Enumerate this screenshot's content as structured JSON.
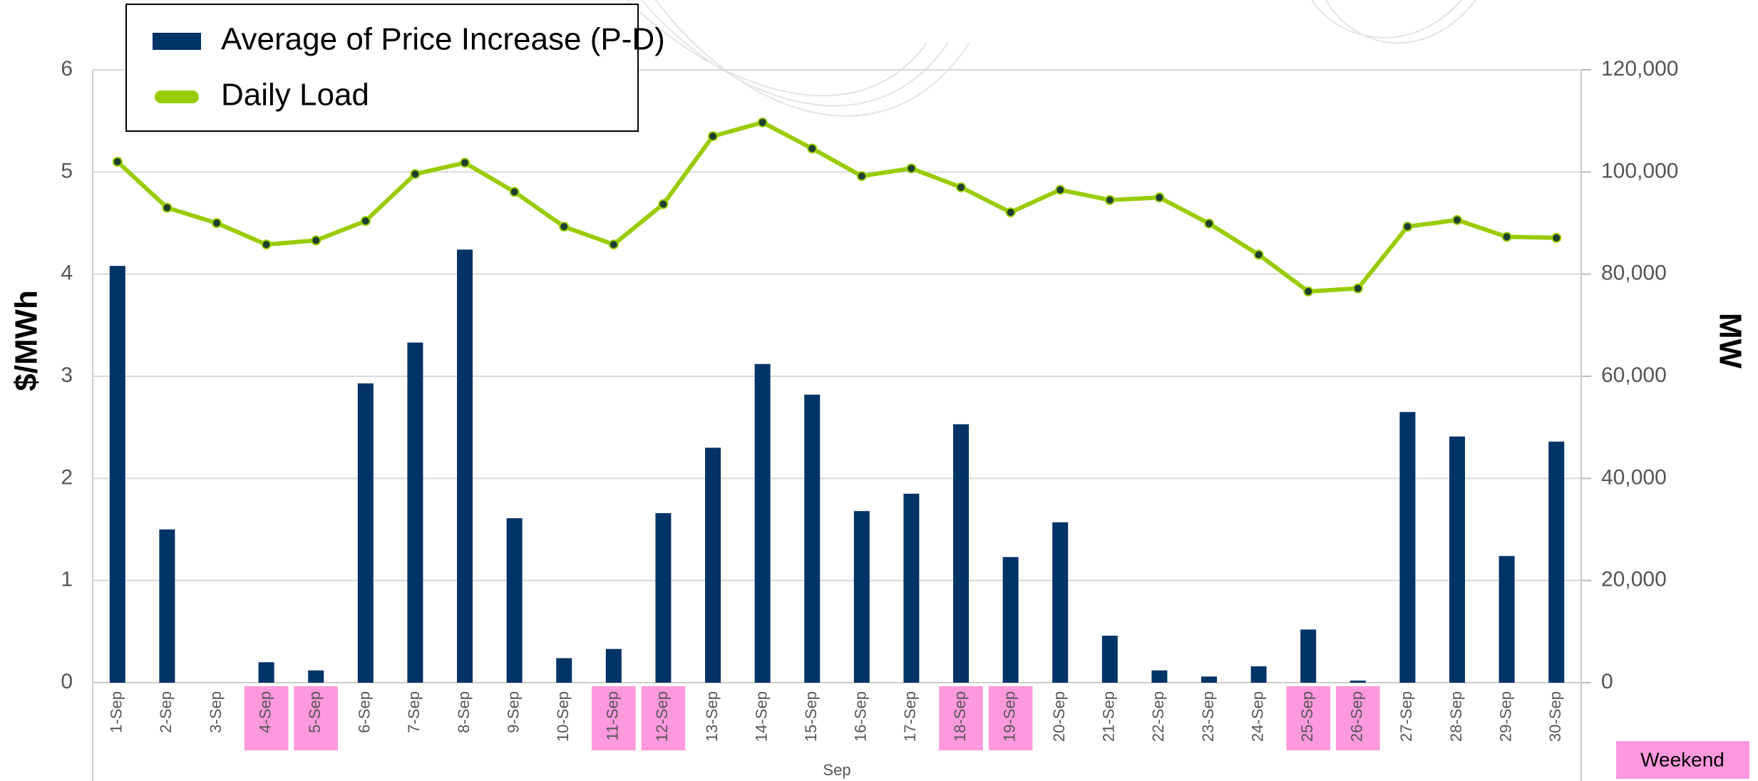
{
  "chart_data": {
    "type": "bar_line",
    "categories": [
      "1-Sep",
      "2-Sep",
      "3-Sep",
      "4-Sep",
      "5-Sep",
      "6-Sep",
      "7-Sep",
      "8-Sep",
      "9-Sep",
      "10-Sep",
      "11-Sep",
      "12-Sep",
      "13-Sep",
      "14-Sep",
      "15-Sep",
      "16-Sep",
      "17-Sep",
      "18-Sep",
      "19-Sep",
      "20-Sep",
      "21-Sep",
      "22-Sep",
      "23-Sep",
      "24-Sep",
      "25-Sep",
      "26-Sep",
      "27-Sep",
      "28-Sep",
      "29-Sep",
      "30-Sep"
    ],
    "x_label": "Sep",
    "y_label": "$/MWh",
    "y2_label": "MW",
    "ylim": [
      0,
      6
    ],
    "yticks": [
      0,
      1,
      2,
      3,
      4,
      5,
      6
    ],
    "y2lim": [
      0,
      120000
    ],
    "y2ticks": [
      0,
      {
        "value": 20000,
        "label": "20,000"
      },
      {
        "value": 40000,
        "label": "40,000"
      },
      {
        "value": 60000,
        "label": "60,000"
      },
      {
        "value": 80000,
        "label": "80,000"
      },
      {
        "value": 100000,
        "label": "100,000"
      },
      {
        "value": 120000,
        "label": "120,000"
      }
    ],
    "grid": true,
    "series": [
      {
        "name": "Average of Price Increase (P-D)",
        "type": "bar",
        "color": "#003366",
        "values": [
          4.08,
          1.5,
          0,
          0.2,
          0.12,
          2.93,
          3.33,
          4.24,
          1.61,
          0.24,
          0.33,
          1.66,
          2.3,
          3.12,
          2.82,
          1.68,
          1.85,
          2.53,
          1.23,
          1.57,
          0.46,
          0.12,
          0.06,
          0.16,
          0.52,
          0.02,
          2.65,
          2.41,
          1.24,
          2.36
        ]
      },
      {
        "name": "Daily Load",
        "type": "line",
        "axis": "y2",
        "color": "#99cc00",
        "values": [
          102000,
          93000,
          90000,
          85800,
          86600,
          90400,
          99600,
          101800,
          96100,
          89300,
          85800,
          93700,
          107000,
          109700,
          104600,
          99200,
          100700,
          97000,
          92100,
          96500,
          94500,
          95000,
          89900,
          83800,
          76600,
          77200,
          89300,
          90600,
          87300,
          87100
        ]
      }
    ],
    "weekend_label": "Weekend",
    "weekend_color": "#ff99dd",
    "weekend_days": [
      "4-Sep",
      "5-Sep",
      "11-Sep",
      "12-Sep",
      "18-Sep",
      "19-Sep",
      "25-Sep",
      "26-Sep"
    ]
  }
}
